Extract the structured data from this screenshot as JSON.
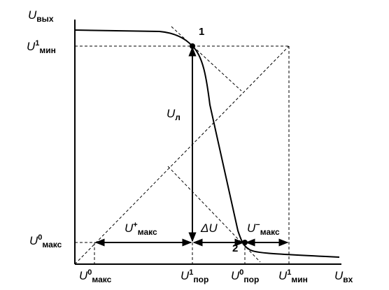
{
  "labels": {
    "y_axis": {
      "main": "U",
      "sub": "вых"
    },
    "y_u1_min": {
      "main": "U",
      "sup": "1",
      "sub": "мин"
    },
    "y_u0_max": {
      "main": "U",
      "sup": "0",
      "sub": "макс"
    },
    "x_u0_max": {
      "main": "U",
      "sup": "0",
      "sub": "макс"
    },
    "x_u1_por": {
      "main": "U",
      "sup": "1",
      "sub": "пор"
    },
    "x_u0_por": {
      "main": "U",
      "sup": "0",
      "sub": "пор"
    },
    "x_u1_min": {
      "main": "U",
      "sup": "1",
      "sub": "мин"
    },
    "x_axis": {
      "main": "U",
      "sub": "вх"
    },
    "u_l": {
      "main": "U",
      "sub": "л"
    },
    "delta_u": "ΔU",
    "u_plus_max": {
      "main": "U",
      "sup": "+",
      "sub": "макс"
    },
    "u_minus_max": {
      "main": "U",
      "sup": "−",
      "sub": "макс"
    },
    "point_1": "1",
    "point_2": "2"
  }
}
